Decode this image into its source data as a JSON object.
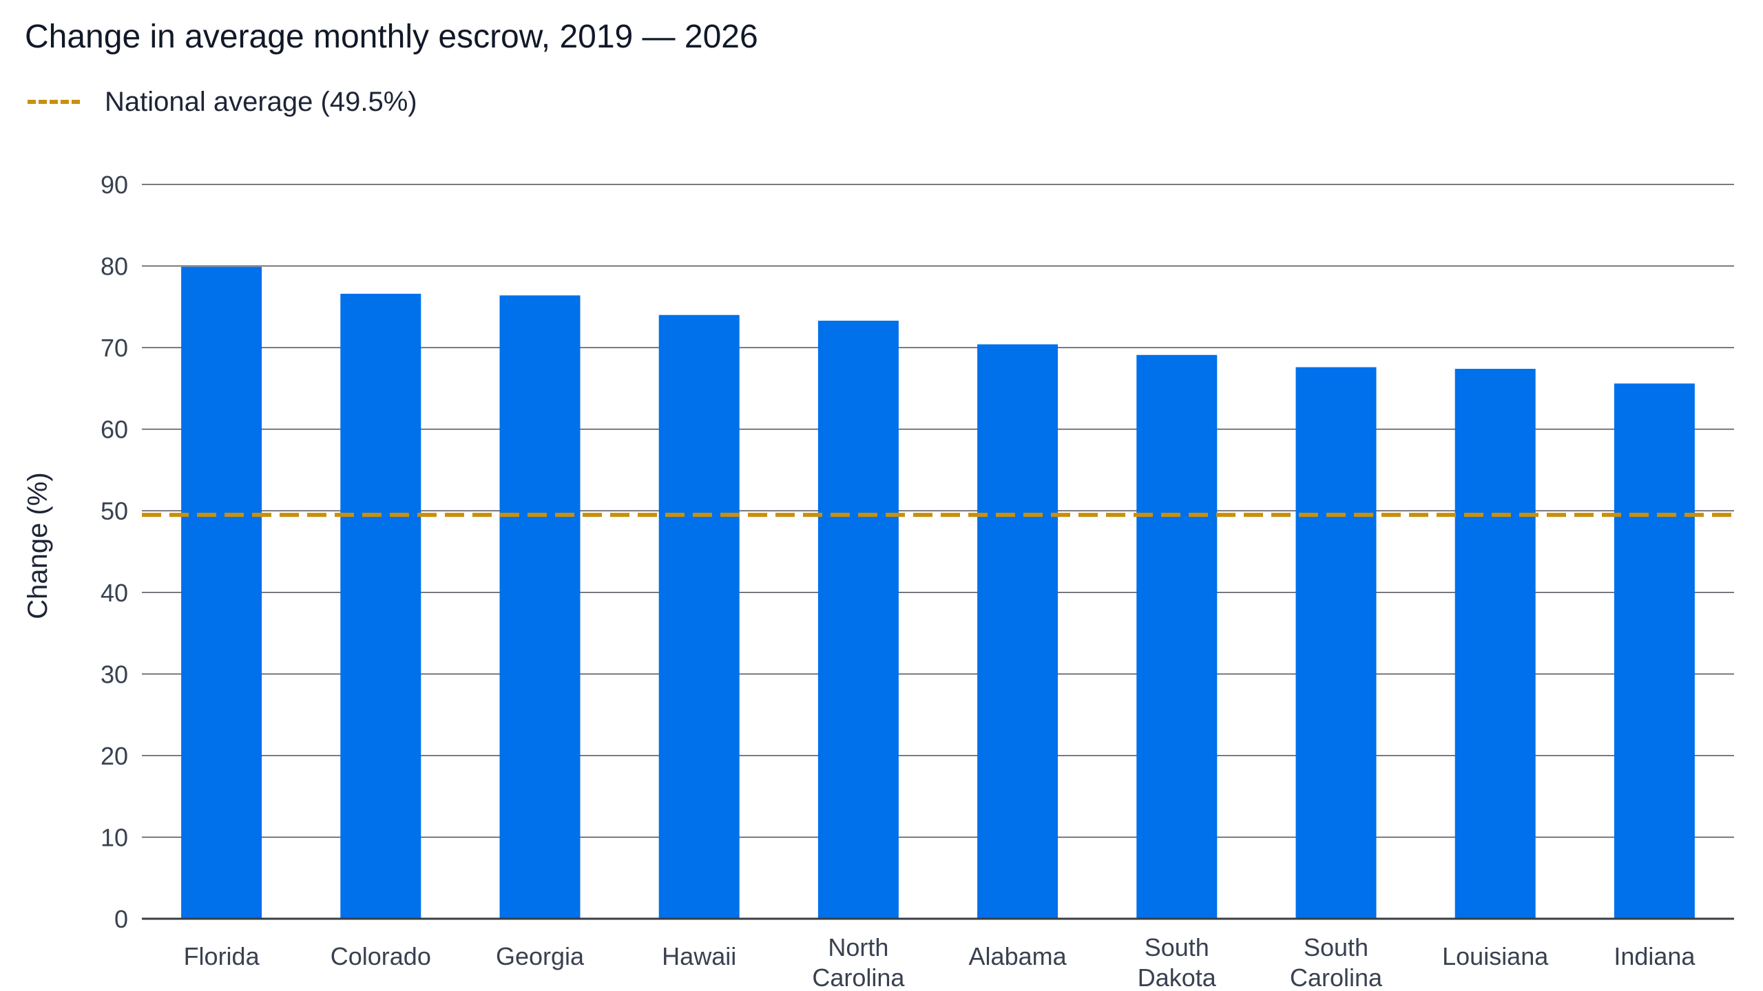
{
  "chart_data": {
    "type": "bar",
    "title": "Change in average monthly escrow, 2019 — 2026",
    "ylabel": "Change (%)",
    "xlabel": "",
    "categories": [
      [
        "Florida"
      ],
      [
        "Colorado"
      ],
      [
        "Georgia"
      ],
      [
        "Hawaii"
      ],
      [
        "North",
        "Carolina"
      ],
      [
        "Alabama"
      ],
      [
        "South",
        "Dakota"
      ],
      [
        "South",
        "Carolina"
      ],
      [
        "Louisiana"
      ],
      [
        "Indiana"
      ]
    ],
    "series": [
      {
        "values": [
          79.9,
          76.6,
          76.4,
          74.0,
          73.3,
          70.4,
          69.1,
          67.6,
          67.4,
          65.6
        ],
        "color": "#0070eb"
      }
    ],
    "reference_line": {
      "label": "National average (49.5%)",
      "value": 49.5,
      "color": "#c8900e",
      "style": "dashed"
    },
    "ylim": [
      0,
      90
    ],
    "yticks": [
      0,
      10,
      20,
      30,
      40,
      50,
      60,
      70,
      80,
      90
    ],
    "grid": "horizontal",
    "legend_position": "top-left"
  }
}
